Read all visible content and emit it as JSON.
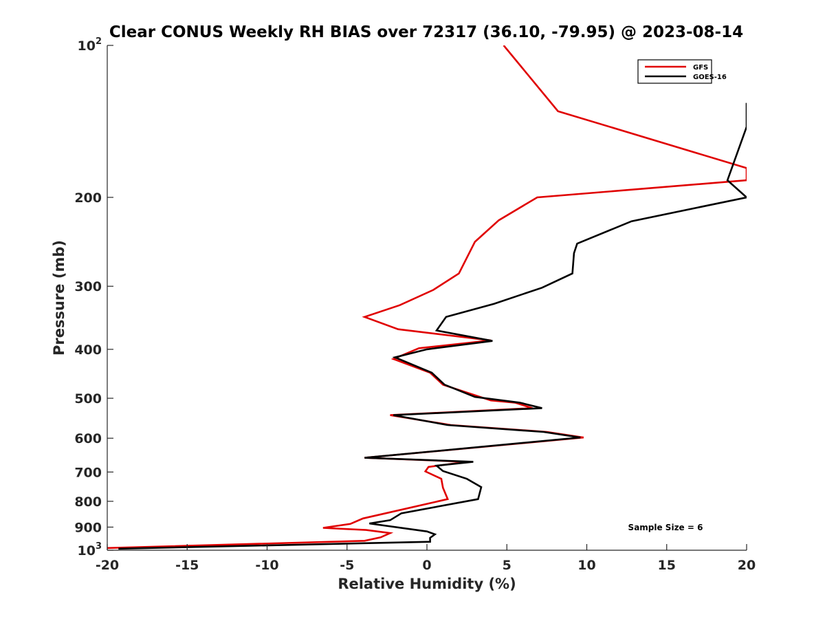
{
  "chart_data": {
    "type": "line",
    "title": "Clear CONUS Weekly RH BIAS over 72317 (36.10, -79.95) @ 2023-08-14",
    "xlabel": "Relative Humidity (%)",
    "ylabel": "Pressure (mb)",
    "xlim": [
      -20,
      20
    ],
    "ylim": [
      100,
      1000
    ],
    "y_scale": "log",
    "y_reversed": true,
    "grid": false,
    "legend_position": "top-right",
    "x_ticks": [
      "-20",
      "-15",
      "-10",
      "-5",
      "0",
      "5",
      "10",
      "15",
      "20"
    ],
    "y_ticks": [
      {
        "base": "10",
        "exp": "2"
      },
      {
        "base": "200",
        "exp": ""
      },
      {
        "base": "300",
        "exp": ""
      },
      {
        "base": "400",
        "exp": ""
      },
      {
        "base": "500",
        "exp": ""
      },
      {
        "base": "600",
        "exp": ""
      },
      {
        "base": "700",
        "exp": ""
      },
      {
        "base": "800",
        "exp": ""
      },
      {
        "base": "900",
        "exp": ""
      },
      {
        "base": "10",
        "exp": "3"
      }
    ],
    "annotation": "Sample Size = 6",
    "series": [
      {
        "name": "GFS",
        "color": "#e00000",
        "points": [
          [
            4.8,
            100
          ],
          [
            8.2,
            135
          ],
          [
            20,
            175
          ],
          [
            20,
            185
          ],
          [
            6.9,
            200
          ],
          [
            4.5,
            222
          ],
          [
            3.0,
            245
          ],
          [
            2.0,
            283
          ],
          [
            0.4,
            305
          ],
          [
            -1.7,
            327
          ],
          [
            -3.9,
            345
          ],
          [
            -1.8,
            365
          ],
          [
            4.0,
            384
          ],
          [
            -0.5,
            398
          ],
          [
            -2.1,
            418
          ],
          [
            0.2,
            445
          ],
          [
            1.0,
            470
          ],
          [
            4.0,
            505
          ],
          [
            5.5,
            510
          ],
          [
            6.6,
            523
          ],
          [
            -2.3,
            540
          ],
          [
            1.5,
            565
          ],
          [
            7.5,
            583
          ],
          [
            9.8,
            598
          ],
          [
            -3.9,
            656
          ],
          [
            2.5,
            668
          ],
          [
            0.1,
            684
          ],
          [
            -0.1,
            698
          ],
          [
            0.9,
            722
          ],
          [
            1.0,
            752
          ],
          [
            1.3,
            792
          ],
          [
            -4.0,
            865
          ],
          [
            -4.8,
            887
          ],
          [
            -6.5,
            903
          ],
          [
            -3.8,
            912
          ],
          [
            -2.3,
            925
          ],
          [
            -2.9,
            943
          ],
          [
            -3.9,
            958
          ],
          [
            -20,
            990
          ]
        ]
      },
      {
        "name": "GOES-16",
        "color": "#000000",
        "points": [
          [
            20,
            130
          ],
          [
            20,
            145
          ],
          [
            18.8,
            185
          ],
          [
            20,
            200
          ],
          [
            12.8,
            223
          ],
          [
            9.4,
            247
          ],
          [
            9.2,
            258
          ],
          [
            9.1,
            283
          ],
          [
            7.2,
            302
          ],
          [
            4.2,
            325
          ],
          [
            1.2,
            345
          ],
          [
            0.6,
            367
          ],
          [
            4.1,
            385
          ],
          [
            0.0,
            400
          ],
          [
            -2.0,
            415
          ],
          [
            0.3,
            445
          ],
          [
            1.1,
            470
          ],
          [
            3.0,
            497
          ],
          [
            5.8,
            510
          ],
          [
            7.2,
            523
          ],
          [
            -2.1,
            540
          ],
          [
            1.3,
            565
          ],
          [
            7.3,
            583
          ],
          [
            9.6,
            598
          ],
          [
            -3.9,
            656
          ],
          [
            2.9,
            668
          ],
          [
            0.6,
            680
          ],
          [
            1.0,
            697
          ],
          [
            2.5,
            722
          ],
          [
            3.4,
            750
          ],
          [
            3.2,
            792
          ],
          [
            -1.6,
            845
          ],
          [
            -2.3,
            872
          ],
          [
            -3.6,
            885
          ],
          [
            0.0,
            918
          ],
          [
            0.5,
            930
          ],
          [
            0.2,
            945
          ],
          [
            0.2,
            962
          ],
          [
            -19.3,
            993
          ]
        ]
      }
    ]
  }
}
